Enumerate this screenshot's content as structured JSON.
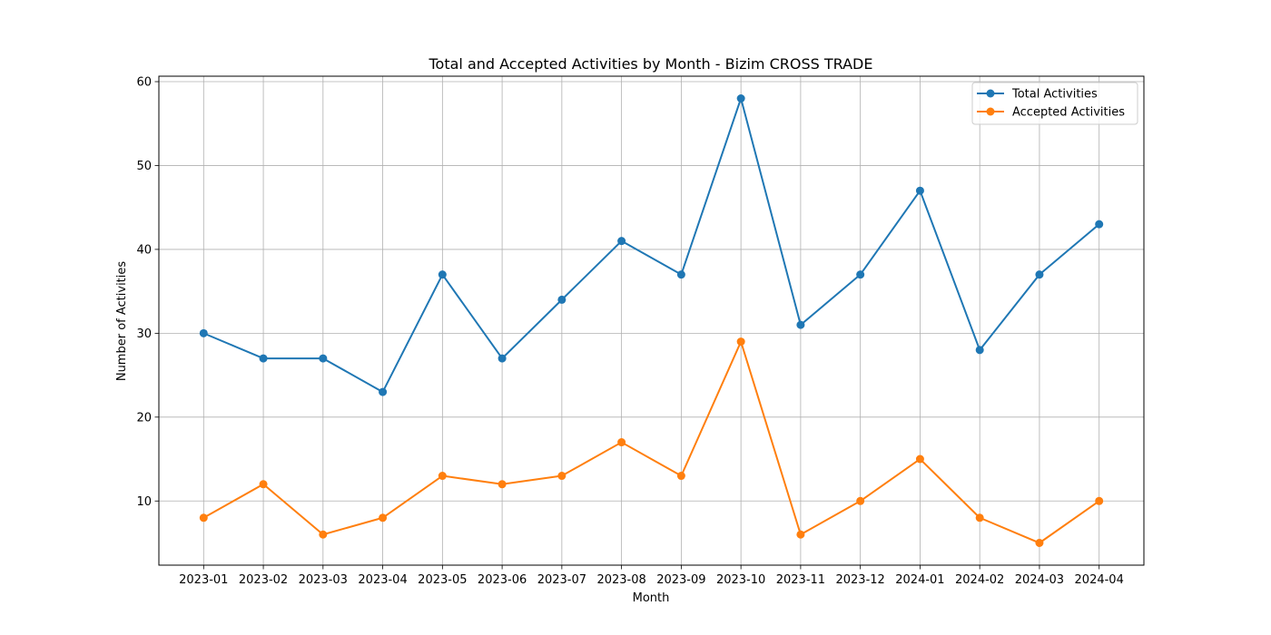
{
  "chart_data": {
    "type": "line",
    "title": "Total and Accepted Activities by Month - Bizim CROSS TRADE",
    "xlabel": "Month",
    "ylabel": "Number of Activities",
    "categories": [
      "2023-01",
      "2023-02",
      "2023-03",
      "2023-04",
      "2023-05",
      "2023-06",
      "2023-07",
      "2023-08",
      "2023-09",
      "2023-10",
      "2023-11",
      "2023-12",
      "2024-01",
      "2024-02",
      "2024-03",
      "2024-04"
    ],
    "series": [
      {
        "name": "Total Activities",
        "color": "#1f77b4",
        "values": [
          30,
          27,
          27,
          23,
          37,
          27,
          34,
          41,
          37,
          58,
          31,
          37,
          47,
          28,
          37,
          43
        ]
      },
      {
        "name": "Accepted Activities",
        "color": "#ff7f0e",
        "values": [
          8,
          12,
          6,
          8,
          13,
          12,
          13,
          17,
          13,
          29,
          6,
          10,
          15,
          8,
          5,
          10
        ]
      }
    ],
    "ylim": [
      2.35,
      60.65
    ],
    "yticks": [
      10,
      20,
      30,
      40,
      50,
      60
    ],
    "grid": true,
    "legend_position": "upper right"
  }
}
